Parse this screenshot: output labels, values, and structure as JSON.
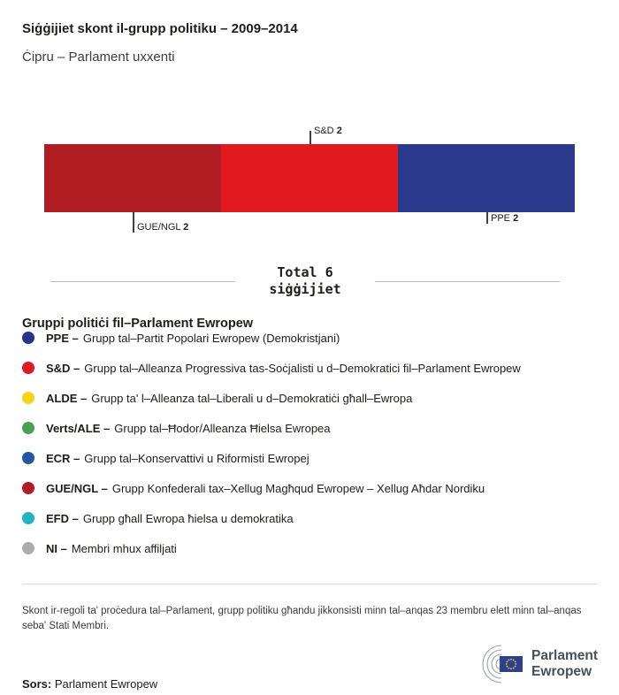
{
  "header": {
    "title": "Siġġijiet skont il-grupp politiku – 2009–2014",
    "subtitle": "Ċipru – Parlament uxxenti"
  },
  "chart_data": {
    "type": "bar",
    "orientation": "horizontal-stacked",
    "title": "Siġġijiet skont il-grupp politiku – 2009–2014",
    "subtitle": "Ċipru – Parlament uxxenti",
    "total_seats": 6,
    "series": [
      {
        "name": "GUE/NGL",
        "value": 2,
        "color": "#b01e24",
        "label_position": "below"
      },
      {
        "name": "S&D",
        "value": 2,
        "color": "#e2191f",
        "label_position": "above"
      },
      {
        "name": "PPE",
        "value": 2,
        "color": "#2b3a8c",
        "label_position": "below"
      }
    ],
    "total_label": {
      "line1": "Total 6",
      "line2": "siġġijiet"
    },
    "legend_position": "below"
  },
  "legend": {
    "title": "Gruppi politiċi fil–Parlament Ewropew",
    "items": [
      {
        "abbr": "PPE –",
        "desc": "Grupp tal–Partit Popolari Ewropew (Demokristjani)",
        "color": "#27348b"
      },
      {
        "abbr": "S&D –",
        "desc": "Grupp tal–Alleanza Progressiva tas-Soċjalisti u d–Demokratici fil–Parlament Ewropew",
        "color": "#e2191f"
      },
      {
        "abbr": "ALDE –",
        "desc": "Grupp ta' l–Alleanza tal–Liberali u d–Demokratiċi għall–Ewropa",
        "color": "#f5d317"
      },
      {
        "abbr": "Verts/ALE –",
        "desc": "Grupp tal–Ħodor/Alleanza Ħielsa Ewropea",
        "color": "#46a25a"
      },
      {
        "abbr": "ECR –",
        "desc": "Grupp tal–Konservattivi u Riformisti Ewropej",
        "color": "#2456a4"
      },
      {
        "abbr": "GUE/NGL –",
        "desc": "Grupp Konfederali tax–Xellug Magħqud Ewropew – Xellug Aħdar Nordiku",
        "color": "#b01e24"
      },
      {
        "abbr": "EFD –",
        "desc": "Grupp għall Ewropa ħielsa u demokratika",
        "color": "#23b5bd"
      },
      {
        "abbr": "NI –",
        "desc": "Membri mhux affiljati",
        "color": "#a9abae"
      }
    ]
  },
  "footnote": "Skont ir-regoli ta' proċedura tal–Parlament, grupp politiku għandu jikkonsisti minn tal–anqas 23 membru elett minn tal–anqas seba' Stati Membri.",
  "footer": {
    "source_label": "Sors:",
    "source_value": "Parlament Ewropew",
    "logo_text_line1": "Parlament",
    "logo_text_line2": "Ewropew"
  }
}
